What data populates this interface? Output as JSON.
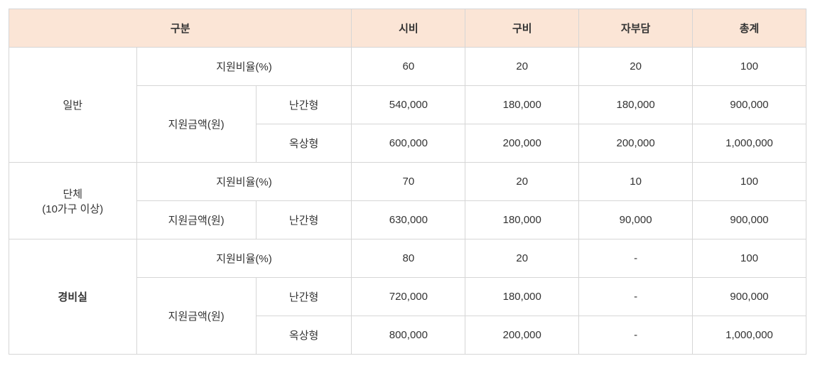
{
  "headers": {
    "category": "구분",
    "col1": "시비",
    "col2": "구비",
    "col3": "자부담",
    "col4": "총계"
  },
  "labels": {
    "ratio": "지원비율(%)",
    "amount": "지원금액(원)",
    "type1": "난간형",
    "type2": "옥상형"
  },
  "groups": {
    "general": {
      "name": "일반",
      "ratio": {
        "v1": "60",
        "v2": "20",
        "v3": "20",
        "v4": "100"
      },
      "amount_type1": {
        "v1": "540,000",
        "v2": "180,000",
        "v3": "180,000",
        "v4": "900,000"
      },
      "amount_type2": {
        "v1": "600,000",
        "v2": "200,000",
        "v3": "200,000",
        "v4": "1,000,000"
      }
    },
    "group10": {
      "name1": "단체",
      "name2": "(10가구 이상)",
      "ratio": {
        "v1": "70",
        "v2": "20",
        "v3": "10",
        "v4": "100"
      },
      "amount_type1": {
        "v1": "630,000",
        "v2": "180,000",
        "v3": "90,000",
        "v4": "900,000"
      }
    },
    "security": {
      "name": "경비실",
      "ratio": {
        "v1": "80",
        "v2": "20",
        "v3": "-",
        "v4": "100"
      },
      "amount_type1": {
        "v1": "720,000",
        "v2": "180,000",
        "v3": "-",
        "v4": "900,000"
      },
      "amount_type2": {
        "v1": "800,000",
        "v2": "200,000",
        "v3": "-",
        "v4": "1,000,000"
      }
    }
  }
}
